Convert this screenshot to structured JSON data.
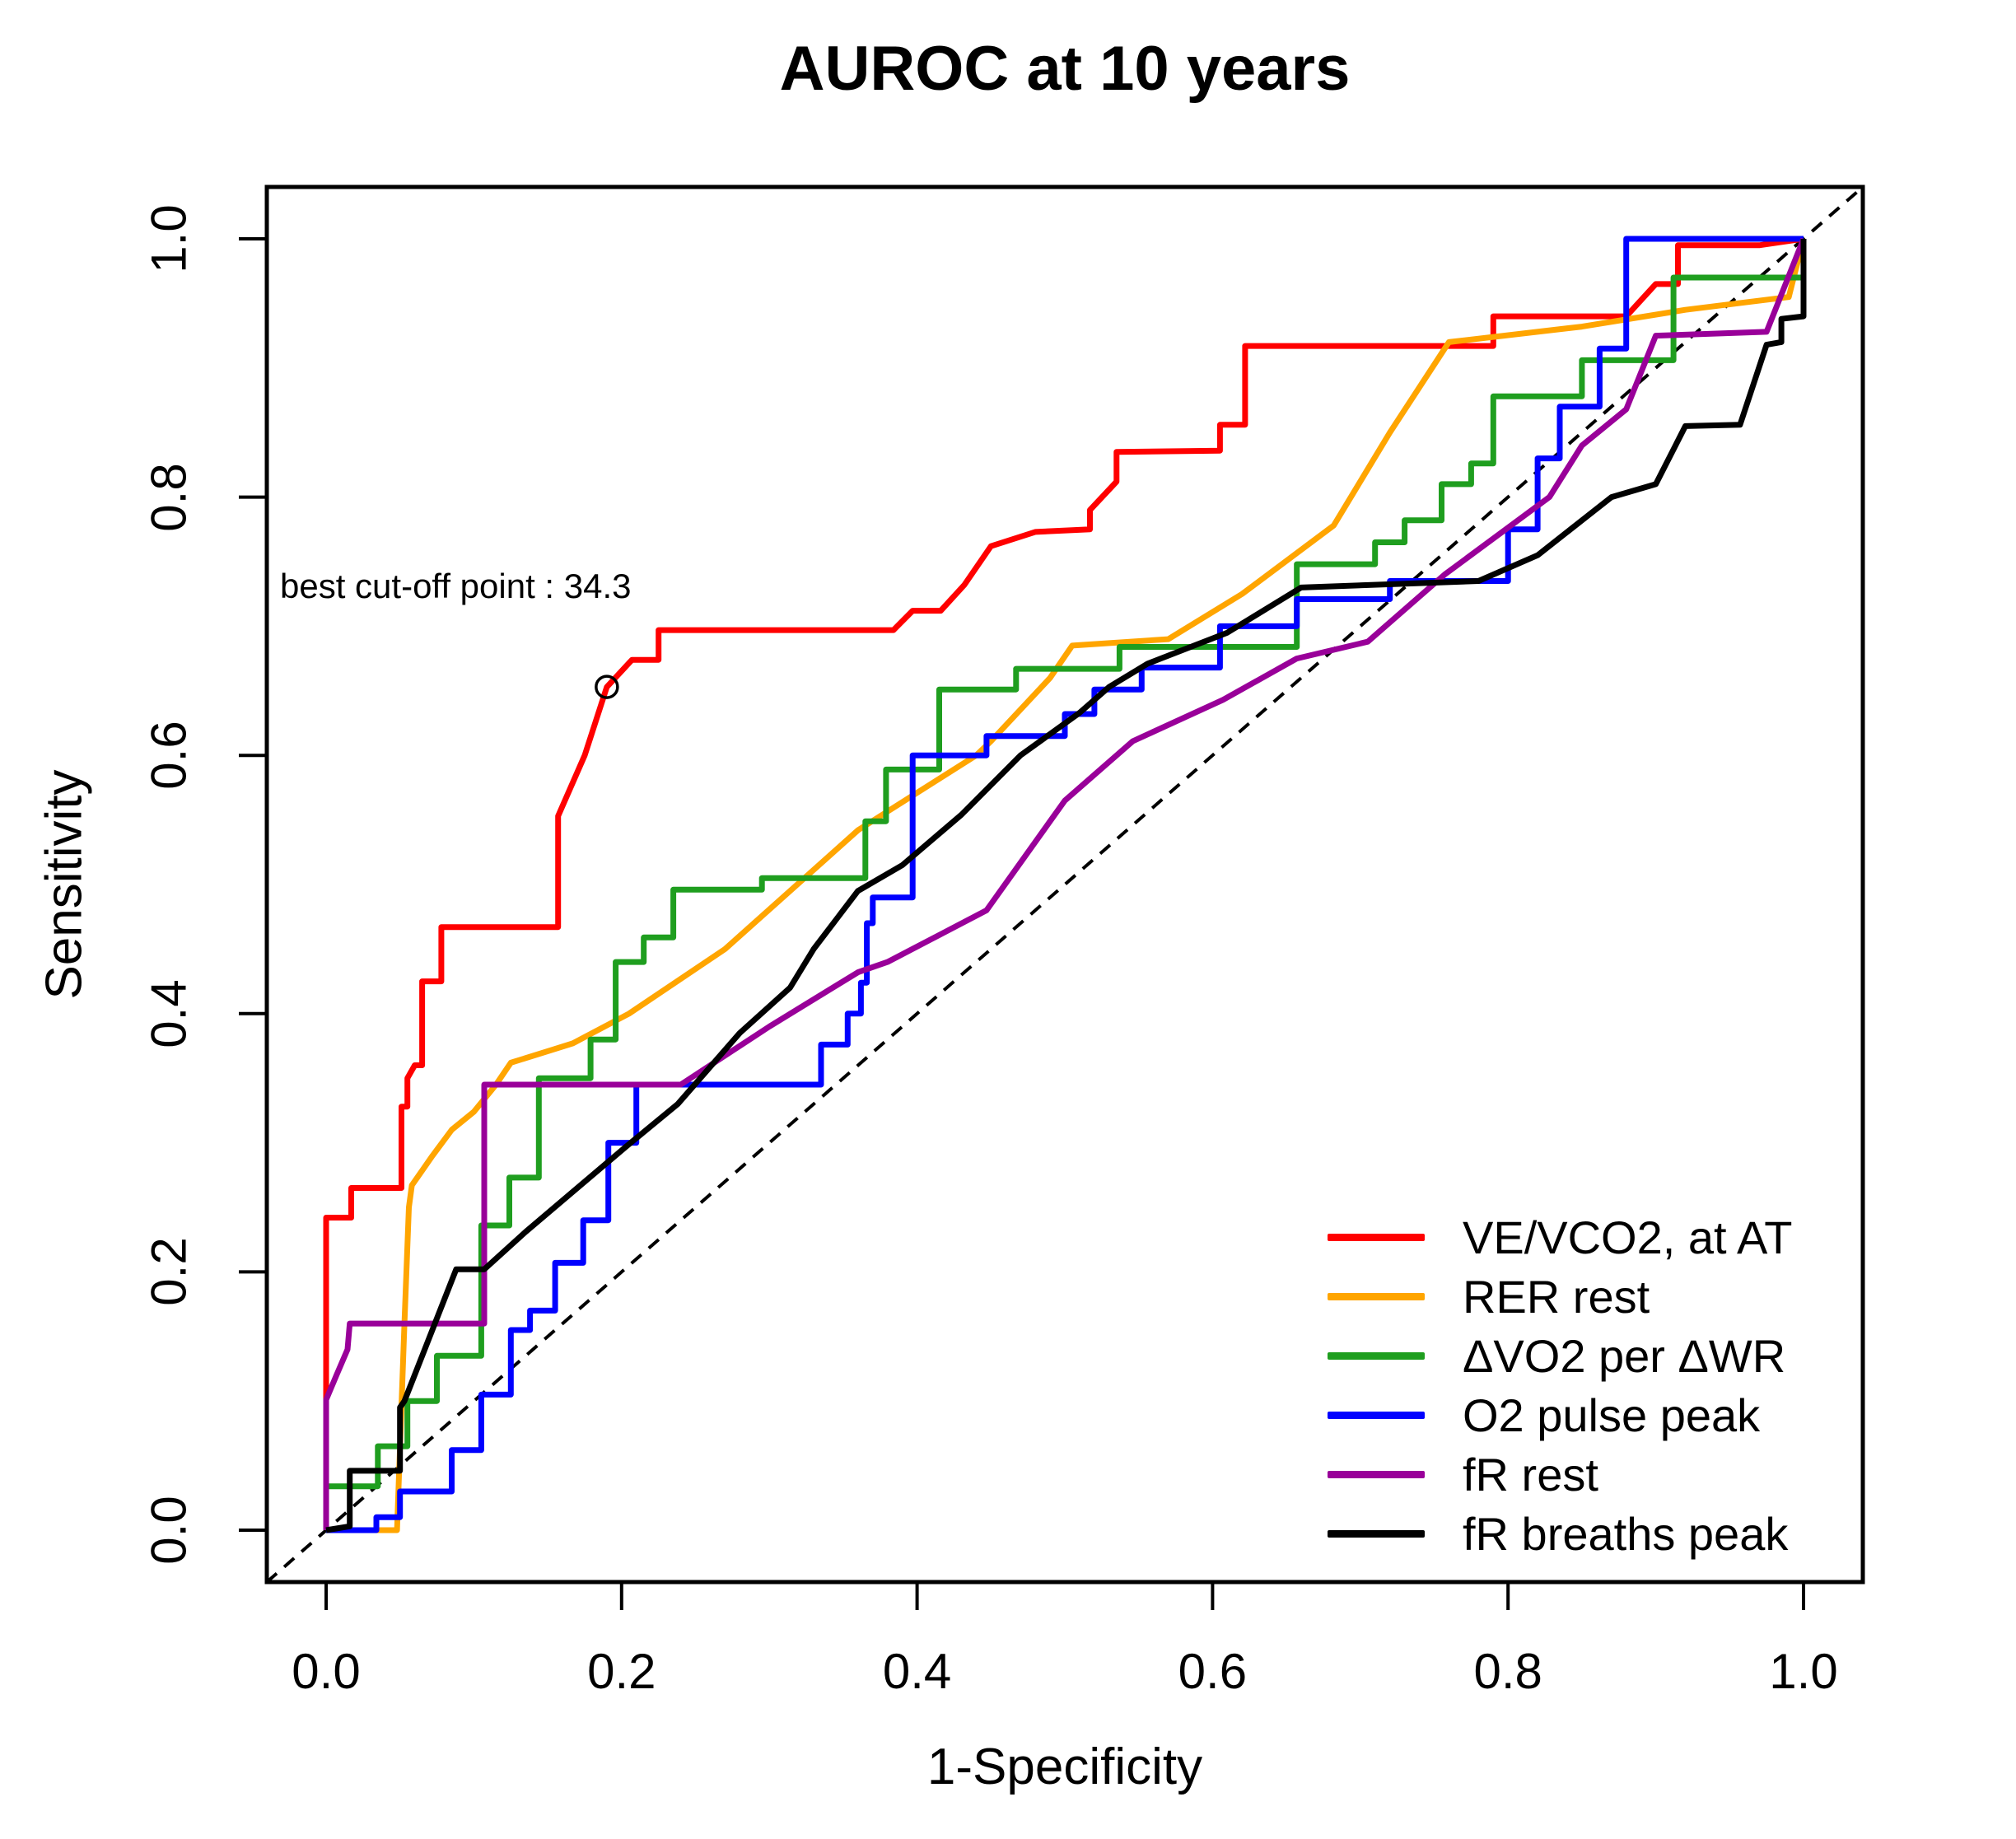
{
  "title": "AUROC at 10 years",
  "annotation": {
    "text": "best cut-off point : 34.3"
  },
  "axes": {
    "x_label": "1-Specificity",
    "y_label": "Sensitivity",
    "x_ticks": [
      "0.0",
      "0.2",
      "0.4",
      "0.6",
      "0.8",
      "1.0"
    ],
    "y_ticks": [
      "0.0",
      "0.2",
      "0.4",
      "0.6",
      "0.8",
      "1.0"
    ]
  },
  "legend": {
    "items": [
      {
        "label": "VE/VCO2, at AT",
        "color": "#ff0000"
      },
      {
        "label": "RER rest",
        "color": "#ffa500"
      },
      {
        "label": "ΔVO2 per ΔWR",
        "color": "#1f9e1f"
      },
      {
        "label": "O2 pulse peak",
        "color": "#0000ff"
      },
      {
        "label": "fR rest",
        "color": "#990099"
      },
      {
        "label": "fR breaths peak",
        "color": "#000000"
      }
    ]
  },
  "chart_data": {
    "type": "line",
    "subtype": "ROC step curves",
    "title": "AUROC at 10 years",
    "xlabel": "1-Specificity",
    "ylabel": "Sensitivity",
    "xlim": [
      0,
      1
    ],
    "ylim": [
      0,
      1
    ],
    "x_tick_values": [
      0.0,
      0.2,
      0.4,
      0.6,
      0.8,
      1.0
    ],
    "y_tick_values": [
      0.0,
      0.2,
      0.4,
      0.6,
      0.8,
      1.0
    ],
    "grid": false,
    "legend_position": "bottom-right",
    "diagonal_reference": {
      "style": "dashed",
      "from": [
        0,
        0
      ],
      "to": [
        1,
        1
      ],
      "color": "#000000"
    },
    "best_cutoff_marker": {
      "series": "VE/VCO2, at AT",
      "value": 34.3,
      "x": 0.19,
      "y": 0.653
    },
    "series": [
      {
        "name": "VE/VCO2, at AT",
        "color": "#ff0000",
        "points": [
          [
            0,
            0
          ],
          [
            0,
            0.242
          ],
          [
            0.017,
            0.242
          ],
          [
            0.017,
            0.265
          ],
          [
            0.051,
            0.265
          ],
          [
            0.051,
            0.328
          ],
          [
            0.055,
            0.328
          ],
          [
            0.055,
            0.35
          ],
          [
            0.06,
            0.36
          ],
          [
            0.065,
            0.36
          ],
          [
            0.065,
            0.425
          ],
          [
            0.078,
            0.425
          ],
          [
            0.078,
            0.467
          ],
          [
            0.157,
            0.467
          ],
          [
            0.157,
            0.553
          ],
          [
            0.175,
            0.6
          ],
          [
            0.19,
            0.653
          ],
          [
            0.207,
            0.674
          ],
          [
            0.225,
            0.674
          ],
          [
            0.225,
            0.697
          ],
          [
            0.384,
            0.697
          ],
          [
            0.397,
            0.712
          ],
          [
            0.416,
            0.712
          ],
          [
            0.432,
            0.732
          ],
          [
            0.45,
            0.762
          ],
          [
            0.48,
            0.773
          ],
          [
            0.517,
            0.775
          ],
          [
            0.517,
            0.79
          ],
          [
            0.535,
            0.812
          ],
          [
            0.535,
            0.835
          ],
          [
            0.605,
            0.836
          ],
          [
            0.605,
            0.856
          ],
          [
            0.622,
            0.856
          ],
          [
            0.622,
            0.917
          ],
          [
            0.79,
            0.917
          ],
          [
            0.79,
            0.94
          ],
          [
            0.88,
            0.94
          ],
          [
            0.9,
            0.965
          ],
          [
            0.915,
            0.965
          ],
          [
            0.915,
            0.995
          ],
          [
            0.97,
            0.995
          ],
          [
            1,
            1
          ]
        ]
      },
      {
        "name": "RER rest",
        "color": "#ffa500",
        "points": [
          [
            0,
            0
          ],
          [
            0.048,
            0
          ],
          [
            0.053,
            0.16
          ],
          [
            0.056,
            0.25
          ],
          [
            0.058,
            0.267
          ],
          [
            0.072,
            0.29
          ],
          [
            0.085,
            0.31
          ],
          [
            0.1,
            0.324
          ],
          [
            0.115,
            0.345
          ],
          [
            0.125,
            0.362
          ],
          [
            0.167,
            0.377
          ],
          [
            0.205,
            0.4
          ],
          [
            0.27,
            0.45
          ],
          [
            0.36,
            0.542
          ],
          [
            0.44,
            0.6
          ],
          [
            0.45,
            0.611
          ],
          [
            0.49,
            0.66
          ],
          [
            0.505,
            0.685
          ],
          [
            0.57,
            0.69
          ],
          [
            0.62,
            0.725
          ],
          [
            0.682,
            0.778
          ],
          [
            0.72,
            0.85
          ],
          [
            0.76,
            0.92
          ],
          [
            0.85,
            0.932
          ],
          [
            0.92,
            0.945
          ],
          [
            0.99,
            0.955
          ],
          [
            1,
            1
          ]
        ]
      },
      {
        "name": "ΔVO2 per ΔWR",
        "color": "#1f9e1f",
        "points": [
          [
            0,
            0
          ],
          [
            0,
            0.034
          ],
          [
            0.035,
            0.034
          ],
          [
            0.035,
            0.065
          ],
          [
            0.055,
            0.065
          ],
          [
            0.055,
            0.1
          ],
          [
            0.075,
            0.1
          ],
          [
            0.075,
            0.135
          ],
          [
            0.105,
            0.135
          ],
          [
            0.105,
            0.236
          ],
          [
            0.124,
            0.236
          ],
          [
            0.124,
            0.273
          ],
          [
            0.144,
            0.273
          ],
          [
            0.144,
            0.35
          ],
          [
            0.179,
            0.35
          ],
          [
            0.179,
            0.38
          ],
          [
            0.196,
            0.38
          ],
          [
            0.196,
            0.44
          ],
          [
            0.215,
            0.44
          ],
          [
            0.215,
            0.459
          ],
          [
            0.235,
            0.459
          ],
          [
            0.235,
            0.496
          ],
          [
            0.295,
            0.496
          ],
          [
            0.295,
            0.505
          ],
          [
            0.365,
            0.505
          ],
          [
            0.365,
            0.549
          ],
          [
            0.379,
            0.549
          ],
          [
            0.379,
            0.589
          ],
          [
            0.415,
            0.589
          ],
          [
            0.415,
            0.651
          ],
          [
            0.467,
            0.651
          ],
          [
            0.467,
            0.667
          ],
          [
            0.537,
            0.667
          ],
          [
            0.537,
            0.684
          ],
          [
            0.657,
            0.684
          ],
          [
            0.657,
            0.748
          ],
          [
            0.71,
            0.748
          ],
          [
            0.71,
            0.765
          ],
          [
            0.73,
            0.765
          ],
          [
            0.73,
            0.782
          ],
          [
            0.755,
            0.782
          ],
          [
            0.755,
            0.81
          ],
          [
            0.775,
            0.81
          ],
          [
            0.775,
            0.826
          ],
          [
            0.79,
            0.826
          ],
          [
            0.79,
            0.878
          ],
          [
            0.85,
            0.878
          ],
          [
            0.85,
            0.906
          ],
          [
            0.912,
            0.906
          ],
          [
            0.912,
            0.97
          ],
          [
            1,
            0.97
          ],
          [
            1,
            1
          ]
        ]
      },
      {
        "name": "O2 pulse peak",
        "color": "#0000ff",
        "points": [
          [
            0,
            0
          ],
          [
            0.034,
            0
          ],
          [
            0.034,
            0.01
          ],
          [
            0.05,
            0.01
          ],
          [
            0.05,
            0.03
          ],
          [
            0.085,
            0.03
          ],
          [
            0.085,
            0.062
          ],
          [
            0.105,
            0.062
          ],
          [
            0.105,
            0.105
          ],
          [
            0.125,
            0.105
          ],
          [
            0.125,
            0.155
          ],
          [
            0.138,
            0.155
          ],
          [
            0.138,
            0.17
          ],
          [
            0.155,
            0.17
          ],
          [
            0.155,
            0.207
          ],
          [
            0.174,
            0.207
          ],
          [
            0.174,
            0.24
          ],
          [
            0.191,
            0.24
          ],
          [
            0.191,
            0.3
          ],
          [
            0.21,
            0.3
          ],
          [
            0.21,
            0.345
          ],
          [
            0.335,
            0.345
          ],
          [
            0.335,
            0.376
          ],
          [
            0.353,
            0.376
          ],
          [
            0.353,
            0.4
          ],
          [
            0.362,
            0.4
          ],
          [
            0.362,
            0.424
          ],
          [
            0.366,
            0.424
          ],
          [
            0.366,
            0.47
          ],
          [
            0.37,
            0.47
          ],
          [
            0.37,
            0.49
          ],
          [
            0.397,
            0.49
          ],
          [
            0.397,
            0.6
          ],
          [
            0.447,
            0.6
          ],
          [
            0.447,
            0.615
          ],
          [
            0.5,
            0.615
          ],
          [
            0.5,
            0.632
          ],
          [
            0.52,
            0.632
          ],
          [
            0.52,
            0.651
          ],
          [
            0.552,
            0.651
          ],
          [
            0.552,
            0.668
          ],
          [
            0.605,
            0.668
          ],
          [
            0.605,
            0.7
          ],
          [
            0.657,
            0.7
          ],
          [
            0.657,
            0.721
          ],
          [
            0.72,
            0.721
          ],
          [
            0.72,
            0.735
          ],
          [
            0.8,
            0.735
          ],
          [
            0.8,
            0.775
          ],
          [
            0.82,
            0.775
          ],
          [
            0.82,
            0.83
          ],
          [
            0.835,
            0.83
          ],
          [
            0.835,
            0.87
          ],
          [
            0.862,
            0.87
          ],
          [
            0.862,
            0.915
          ],
          [
            0.88,
            0.915
          ],
          [
            0.88,
            1
          ],
          [
            1,
            1
          ]
        ]
      },
      {
        "name": "fR rest",
        "color": "#990099",
        "points": [
          [
            0,
            0
          ],
          [
            0,
            0.101
          ],
          [
            0.007,
            0.12
          ],
          [
            0.0145,
            0.14
          ],
          [
            0.016,
            0.16
          ],
          [
            0.107,
            0.16
          ],
          [
            0.107,
            0.345
          ],
          [
            0.24,
            0.345
          ],
          [
            0.3,
            0.39
          ],
          [
            0.36,
            0.432
          ],
          [
            0.38,
            0.44
          ],
          [
            0.447,
            0.48
          ],
          [
            0.5,
            0.565
          ],
          [
            0.546,
            0.611
          ],
          [
            0.607,
            0.643
          ],
          [
            0.657,
            0.675
          ],
          [
            0.705,
            0.688
          ],
          [
            0.757,
            0.74
          ],
          [
            0.828,
            0.8
          ],
          [
            0.85,
            0.84
          ],
          [
            0.88,
            0.868
          ],
          [
            0.9,
            0.925
          ],
          [
            0.975,
            0.928
          ],
          [
            1,
            1
          ]
        ]
      },
      {
        "name": "fR breaths peak",
        "color": "#000000",
        "points": [
          [
            0,
            0
          ],
          [
            0.016,
            0.003
          ],
          [
            0.016,
            0.046
          ],
          [
            0.05,
            0.046
          ],
          [
            0.05,
            0.095
          ],
          [
            0.053,
            0.1
          ],
          [
            0.088,
            0.202
          ],
          [
            0.107,
            0.202
          ],
          [
            0.135,
            0.231
          ],
          [
            0.168,
            0.263
          ],
          [
            0.203,
            0.297
          ],
          [
            0.238,
            0.33
          ],
          [
            0.28,
            0.385
          ],
          [
            0.314,
            0.42
          ],
          [
            0.33,
            0.45
          ],
          [
            0.36,
            0.495
          ],
          [
            0.39,
            0.515
          ],
          [
            0.43,
            0.554
          ],
          [
            0.47,
            0.6
          ],
          [
            0.51,
            0.633
          ],
          [
            0.53,
            0.653
          ],
          [
            0.556,
            0.671
          ],
          [
            0.61,
            0.695
          ],
          [
            0.66,
            0.73
          ],
          [
            0.78,
            0.735
          ],
          [
            0.82,
            0.755
          ],
          [
            0.87,
            0.8
          ],
          [
            0.9,
            0.81
          ],
          [
            0.92,
            0.855
          ],
          [
            0.957,
            0.856
          ],
          [
            0.975,
            0.918
          ],
          [
            0.985,
            0.92
          ],
          [
            0.985,
            0.938
          ],
          [
            1,
            0.94
          ],
          [
            1,
            1
          ]
        ]
      }
    ]
  },
  "layout_colors": {
    "axis": "#000000",
    "background": "#ffffff"
  }
}
